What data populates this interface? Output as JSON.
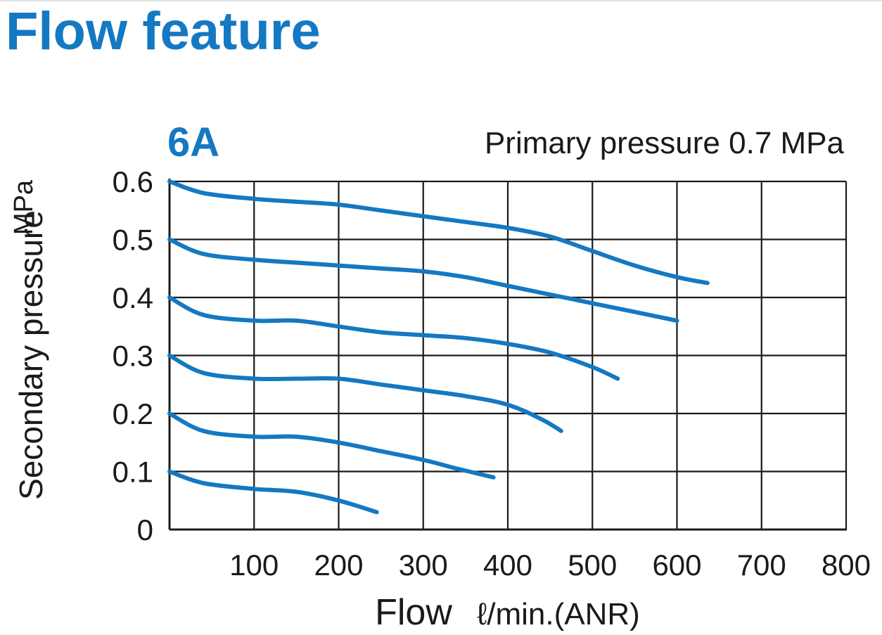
{
  "page": {
    "title": "Flow feature"
  },
  "chart_data": {
    "type": "line",
    "model_label": "6A",
    "subtitle": "Primary pressure 0.7 MPa",
    "xlabel": "Flow",
    "xunit": "ℓ/min.(ANR)",
    "ylabel": "Secondary pressure",
    "yunit": "MPa",
    "xlim": [
      0,
      800
    ],
    "ylim": [
      0,
      0.6
    ],
    "x_ticks": [
      100,
      200,
      300,
      400,
      500,
      600,
      700,
      800
    ],
    "y_ticks": [
      "0",
      "0.1",
      "0.2",
      "0.3",
      "0.4",
      "0.5",
      "0.6"
    ],
    "grid": true,
    "colors": {
      "title": "#1578c2",
      "curve": "#1578c2",
      "axis": "#1a1a1a"
    },
    "series": [
      {
        "x": [
          0,
          40,
          100,
          150,
          200,
          245
        ],
        "y": [
          0.1,
          0.08,
          0.07,
          0.065,
          0.05,
          0.03
        ]
      },
      {
        "x": [
          0,
          40,
          100,
          150,
          200,
          250,
          300,
          340,
          383
        ],
        "y": [
          0.2,
          0.17,
          0.16,
          0.16,
          0.15,
          0.135,
          0.12,
          0.105,
          0.09
        ]
      },
      {
        "x": [
          0,
          40,
          100,
          150,
          200,
          250,
          300,
          350,
          400,
          440,
          463
        ],
        "y": [
          0.3,
          0.27,
          0.26,
          0.26,
          0.26,
          0.25,
          0.24,
          0.23,
          0.215,
          0.19,
          0.17
        ]
      },
      {
        "x": [
          0,
          40,
          100,
          150,
          200,
          250,
          300,
          350,
          400,
          450,
          500,
          530
        ],
        "y": [
          0.4,
          0.37,
          0.36,
          0.36,
          0.35,
          0.34,
          0.335,
          0.33,
          0.32,
          0.305,
          0.28,
          0.26
        ]
      },
      {
        "x": [
          0,
          40,
          100,
          150,
          200,
          250,
          300,
          350,
          400,
          450,
          500,
          550,
          600
        ],
        "y": [
          0.5,
          0.475,
          0.465,
          0.46,
          0.455,
          0.45,
          0.445,
          0.435,
          0.42,
          0.405,
          0.39,
          0.375,
          0.36
        ]
      },
      {
        "x": [
          0,
          40,
          100,
          150,
          200,
          250,
          300,
          350,
          400,
          450,
          500,
          550,
          600,
          636
        ],
        "y": [
          0.6,
          0.58,
          0.57,
          0.565,
          0.56,
          0.55,
          0.54,
          0.53,
          0.52,
          0.505,
          0.48,
          0.455,
          0.435,
          0.425
        ]
      }
    ]
  }
}
